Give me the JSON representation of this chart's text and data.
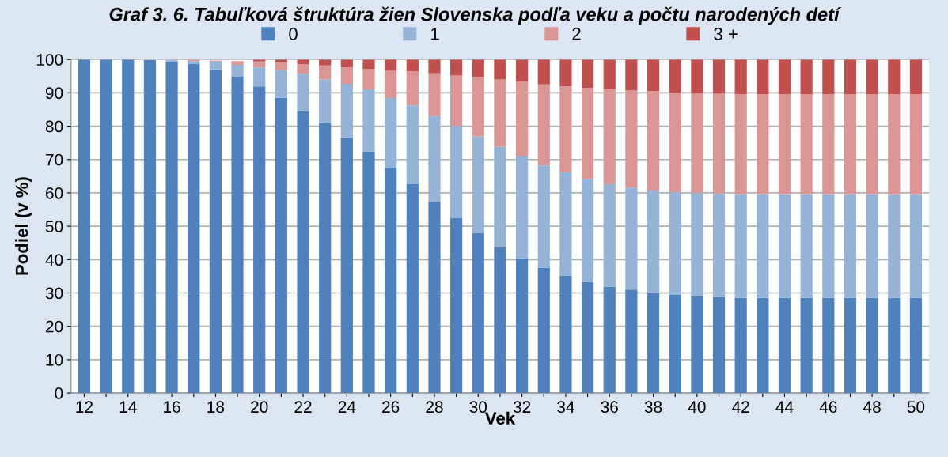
{
  "chart_data": {
    "type": "bar",
    "stacked": true,
    "title": "Graf 3. 6. Tabuľková štruktúra žien Slovenska podľa veku a počtu narodených detí",
    "xlabel": "Vek",
    "ylabel": "Podiel (v %)",
    "categories": [
      "12",
      null,
      "14",
      null,
      "16",
      null,
      "18",
      null,
      "20",
      null,
      "22",
      null,
      "24",
      null,
      "26",
      null,
      "28",
      null,
      "30",
      null,
      "32",
      null,
      "34",
      null,
      "36",
      null,
      "38",
      null,
      "40",
      null,
      "42",
      null,
      "44",
      null,
      "46",
      null,
      "48",
      null,
      "50"
    ],
    "series": [
      {
        "name": "0",
        "color": "#4f81bd",
        "values": [
          100,
          100,
          100,
          99.8,
          99.4,
          98.6,
          97.0,
          94.8,
          91.9,
          88.5,
          84.4,
          80.9,
          76.6,
          72.4,
          67.5,
          62.6,
          57.3,
          52.4,
          47.9,
          43.7,
          40.4,
          37.6,
          35.2,
          33.3,
          31.9,
          31.0,
          30.0,
          29.4,
          29.0,
          28.8,
          28.5,
          28.5,
          28.5,
          28.5,
          28.5,
          28.5,
          28.5,
          28.5,
          28.5
        ]
      },
      {
        "name": "1",
        "color": "#95b3d7",
        "values": [
          0,
          0,
          0,
          null,
          0.4,
          0.9,
          2.4,
          3.6,
          5.7,
          8.4,
          11.3,
          13.1,
          16.1,
          18.6,
          20.9,
          23.6,
          25.7,
          27.7,
          29.0,
          30.1,
          30.7,
          30.6,
          31.0,
          30.9,
          30.7,
          30.6,
          30.7,
          30.8,
          31.0,
          31.0,
          31.1,
          31.1,
          31.1,
          31.1,
          31.1,
          31.1,
          31.1,
          31.1,
          31.1
        ]
      },
      {
        "name": "2",
        "color": "#da9694",
        "values": [
          0,
          0,
          0,
          0,
          null,
          0.4,
          0.3,
          1.1,
          1.8,
          2.3,
          2.9,
          4.2,
          4.9,
          6.2,
          8.2,
          10.2,
          12.8,
          15.1,
          17.8,
          20.2,
          22.3,
          24.3,
          25.7,
          27.3,
          28.4,
          29.1,
          29.8,
          29.8,
          29.8,
          29.9,
          30.0,
          30.0,
          30.0,
          30.0,
          30.0,
          30.0,
          30.0,
          30.0,
          30.0
        ]
      },
      {
        "name": "3 +",
        "color": "#c0504d",
        "values": [
          0,
          0,
          0,
          0,
          0,
          null,
          null,
          null,
          0.6,
          0.8,
          1.4,
          1.8,
          2.4,
          2.8,
          3.4,
          3.6,
          4.2,
          4.8,
          5.3,
          6.0,
          6.6,
          7.5,
          8.1,
          8.5,
          9.0,
          9.3,
          9.5,
          10.0,
          10.2,
          10.3,
          10.4,
          10.4,
          10.4,
          10.4,
          10.4,
          10.4,
          10.4,
          10.4,
          10.4
        ]
      }
    ],
    "ylim": [
      0,
      100
    ],
    "yticks": [
      0,
      10,
      20,
      30,
      40,
      50,
      60,
      70,
      80,
      90,
      100
    ],
    "grid": "y",
    "legend": "top"
  }
}
